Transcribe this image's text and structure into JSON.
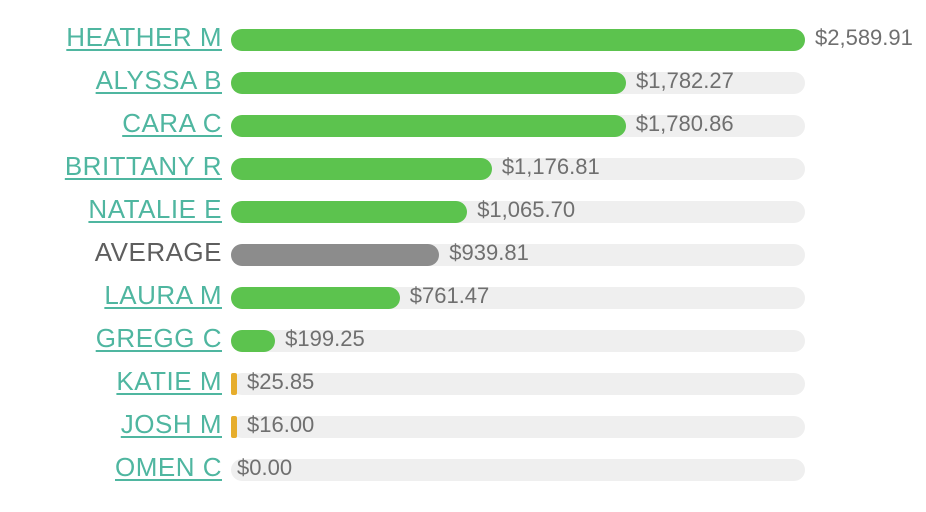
{
  "chart_data": {
    "type": "bar",
    "orientation": "horizontal",
    "xlim": [
      0,
      2589.91
    ],
    "colors": {
      "person_bar": "#5cc34e",
      "average_bar": "#8c8c8c",
      "small_bar": "#e6ad2c",
      "track": "#efefef",
      "name_link": "#4fb6a0",
      "name_plain": "#5e5e5e",
      "amount_text": "#6f6f6f"
    },
    "rows": [
      {
        "name": "HEATHER M",
        "value": 2589.91,
        "label": "$2,589.91",
        "kind": "person"
      },
      {
        "name": "ALYSSA B",
        "value": 1782.27,
        "label": "$1,782.27",
        "kind": "person"
      },
      {
        "name": "CARA C",
        "value": 1780.86,
        "label": "$1,780.86",
        "kind": "person"
      },
      {
        "name": "BRITTANY R",
        "value": 1176.81,
        "label": "$1,176.81",
        "kind": "person"
      },
      {
        "name": "NATALIE E",
        "value": 1065.7,
        "label": "$1,065.70",
        "kind": "person"
      },
      {
        "name": "AVERAGE",
        "value": 939.81,
        "label": "$939.81",
        "kind": "average"
      },
      {
        "name": "LAURA M",
        "value": 761.47,
        "label": "$761.47",
        "kind": "person"
      },
      {
        "name": "GREGG C",
        "value": 199.25,
        "label": "$199.25",
        "kind": "person"
      },
      {
        "name": "KATIE M",
        "value": 25.85,
        "label": "$25.85",
        "kind": "small"
      },
      {
        "name": "JOSH M",
        "value": 16.0,
        "label": "$16.00",
        "kind": "small"
      },
      {
        "name": "OMEN C",
        "value": 0.0,
        "label": "$0.00",
        "kind": "person"
      }
    ]
  }
}
